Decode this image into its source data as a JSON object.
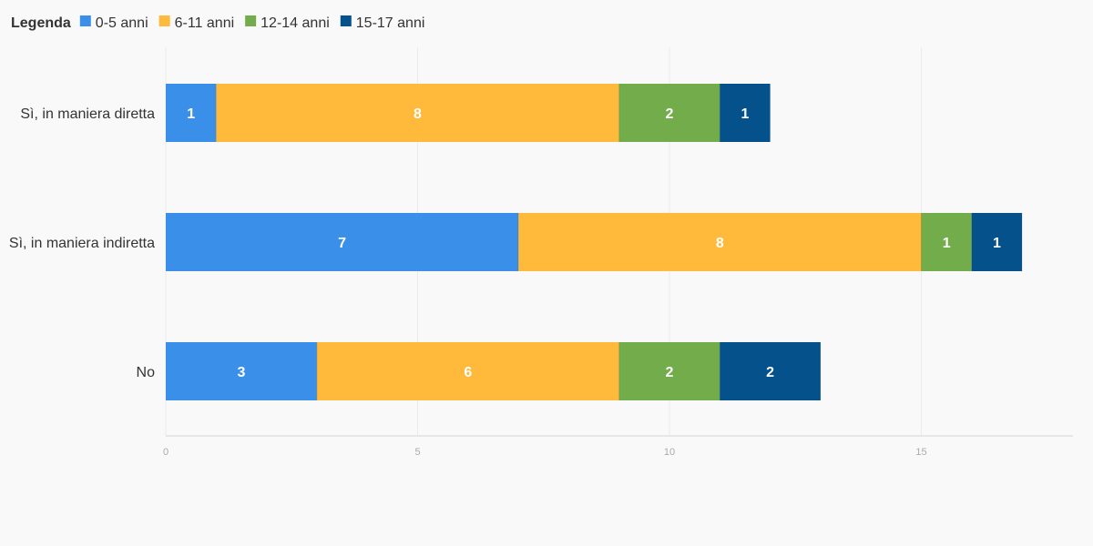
{
  "chart_data": {
    "type": "bar",
    "orientation": "horizontal",
    "stacked": true,
    "legend": {
      "title": "Legenda",
      "position": "top-left"
    },
    "categories": [
      "Sì, in maniera diretta",
      "Sì, in maniera indiretta",
      "No"
    ],
    "series": [
      {
        "name": "0-5 anni",
        "color": "#3a8fe8",
        "values": [
          1,
          7,
          3
        ]
      },
      {
        "name": "6-11 anni",
        "color": "#ffb93b",
        "values": [
          8,
          8,
          6
        ]
      },
      {
        "name": "12-14 anni",
        "color": "#73ad4b",
        "values": [
          2,
          1,
          2
        ]
      },
      {
        "name": "15-17 anni",
        "color": "#04518c",
        "values": [
          1,
          1,
          2
        ]
      }
    ],
    "xlim": [
      0,
      18
    ],
    "xticks": [
      0,
      5,
      10,
      15
    ],
    "grid": true,
    "title": "",
    "xlabel": "",
    "ylabel": ""
  }
}
